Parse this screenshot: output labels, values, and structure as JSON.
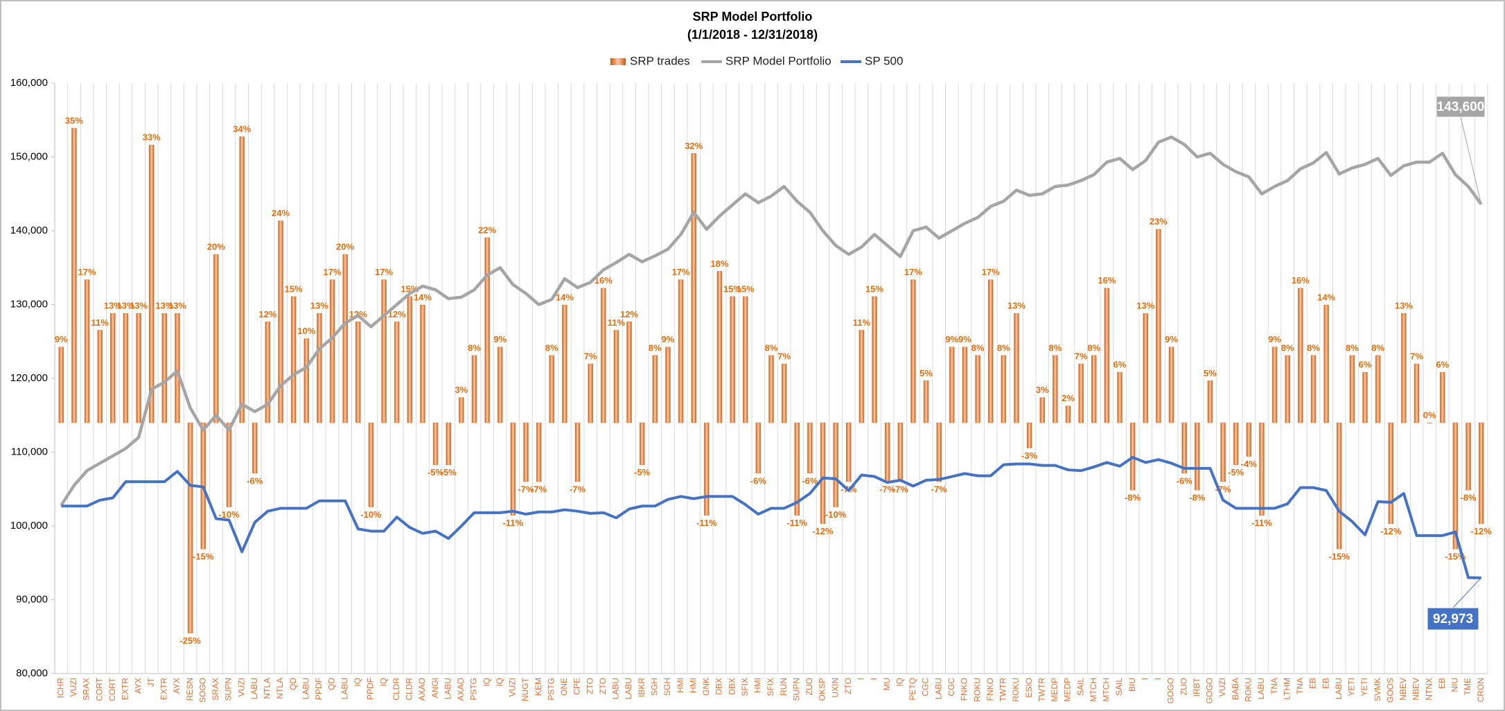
{
  "chart_data": {
    "type": "combo",
    "title": "SRP Model Portfolio",
    "subtitle": "(1/1/2018 - 12/31/2018)",
    "categories": [
      "ICHR",
      "VUZI",
      "SRAX",
      "CORT",
      "CORT",
      "EXTR",
      "AYX",
      "JT",
      "EXTR",
      "AYX",
      "RESN",
      "SOGO",
      "SRAX",
      "SUPN",
      "VUZI",
      "LABU",
      "NTLA",
      "NTLA",
      "QD",
      "LABU",
      "PPDF",
      "QD",
      "LABU",
      "IQ",
      "PPDF",
      "IQ",
      "CLDR",
      "CLDR",
      "AXAO",
      "ANGI",
      "LABU",
      "AXAO",
      "PSTG",
      "IQ",
      "IQ",
      "VUZI",
      "NUGT",
      "KEM",
      "PSTG",
      "ONE",
      "CPE",
      "ZTO",
      "ZTO",
      "LABU",
      "LABU",
      "IBKR",
      "SGH",
      "SGH",
      "HMI",
      "HMI",
      "GNK",
      "DBX",
      "DBX",
      "SFIX",
      "HMI",
      "SFIX",
      "RUN",
      "SUPN",
      "ZUO",
      "OKSP",
      "UXIN",
      "ZTO",
      "I",
      "I",
      "MU",
      "IQ",
      "PETQ",
      "CGC",
      "LABU",
      "CGC",
      "FNKO",
      "ROKU",
      "FNKO",
      "TWTR",
      "ROKU",
      "ESIO",
      "TWTR",
      "MEDP",
      "MEDP",
      "SAIL",
      "MTCH",
      "MTCH",
      "SAIL",
      "BIU",
      "I",
      "I",
      "GOGO",
      "ZUO",
      "IRBT",
      "GOGO",
      "VUZI",
      "BABA",
      "ROKU",
      "LABU",
      "TNA",
      "LTHM",
      "TNA",
      "EB",
      "EB",
      "LABU",
      "YETI",
      "YETI",
      "SVMK",
      "GOOS",
      "NBEV",
      "NBEV",
      "NTNX",
      "EB",
      "NIU",
      "TME",
      "CRON"
    ],
    "series": [
      {
        "name": "SRP trades",
        "type": "bar",
        "axis": "y2",
        "color": "#ed7d31",
        "values": [
          9,
          35,
          17,
          11,
          13,
          13,
          13,
          33,
          13,
          13,
          -25,
          -15,
          20,
          -10,
          34,
          -6,
          12,
          24,
          15,
          10,
          13,
          17,
          20,
          12,
          -10,
          17,
          12,
          15,
          14,
          -5,
          -5,
          3,
          8,
          22,
          9,
          -11,
          -7,
          -7,
          8,
          14,
          -7,
          7,
          16,
          11,
          12,
          -5,
          8,
          9,
          17,
          32,
          -11,
          18,
          15,
          15,
          -6,
          8,
          7,
          -11,
          -6,
          -12,
          -10,
          -7,
          11,
          15,
          -7,
          -7,
          17,
          5,
          -7,
          9,
          9,
          8,
          17,
          8,
          13,
          -3,
          3,
          8,
          2,
          7,
          8,
          16,
          6,
          -8,
          13,
          23,
          9,
          -6,
          -8,
          5,
          -7,
          -5,
          -4,
          -11,
          9,
          8,
          16,
          8,
          14,
          -15,
          8,
          6,
          8,
          -12,
          13,
          7,
          0,
          6,
          -15,
          -8,
          -12
        ],
        "value_labels": [
          "9%",
          "35%",
          "17%",
          "11%",
          "13%",
          "13%",
          "13%",
          "33%",
          "13%",
          "13%",
          "-25%",
          "-15%",
          "20%",
          "-10%",
          "34%",
          "-6%",
          "12%",
          "24%",
          "15%",
          "10%",
          "13%",
          "17%",
          "20%",
          "12%",
          "-10%",
          "17%",
          "12%",
          "15%",
          "14%",
          "-5%",
          "-5%",
          "3%",
          "8%",
          "22%",
          "9%",
          "-11%",
          "-7%",
          "-7%",
          "8%",
          "14%",
          "-7%",
          "7%",
          "16%",
          "11%",
          "12%",
          "-5%",
          "8%",
          "9%",
          "17%",
          "32%",
          "-11%",
          "18%",
          "15%",
          "15%",
          "-6%",
          "8%",
          "7%",
          "-11%",
          "-6%",
          "-12%",
          "-10%",
          "-7%",
          "11%",
          "15%",
          "-7%",
          "-7%",
          "17%",
          "5%",
          "-7%",
          "9%",
          "9%",
          "8%",
          "17%",
          "8%",
          "13%",
          "-3%",
          "3%",
          "8%",
          "2%",
          "7%",
          "8%",
          "16%",
          "6%",
          "-8%",
          "13%",
          "23%",
          "9%",
          "-6%",
          "-8%",
          "5%",
          "-7%",
          "-5%",
          "-4%",
          "-11%",
          "9%",
          "8%",
          "16%",
          "8%",
          "14%",
          "-15%",
          "8%",
          "6%",
          "8%",
          "-12%",
          "13%",
          "7%",
          "0%",
          "6%",
          "-15%",
          "-8%",
          "-12%"
        ]
      },
      {
        "name": "SRP Model Portfolio",
        "type": "line",
        "color": "#a5a5a5",
        "values": [
          102800,
          105500,
          107500,
          108500,
          109500,
          110500,
          112000,
          118500,
          119500,
          121000,
          116000,
          113000,
          115000,
          113000,
          116500,
          115500,
          116500,
          119000,
          120500,
          121500,
          124000,
          125500,
          127500,
          128500,
          127000,
          128500,
          130000,
          131500,
          132500,
          132000,
          130800,
          131000,
          132000,
          134000,
          135000,
          132700,
          131500,
          130000,
          130700,
          133500,
          132300,
          133000,
          134700,
          135700,
          136800,
          135800,
          136600,
          137500,
          139500,
          142500,
          140200,
          142000,
          143500,
          145000,
          143800,
          144700,
          146000,
          144000,
          142500,
          140000,
          138000,
          136800,
          137800,
          139500,
          138000,
          136500,
          140000,
          140500,
          139000,
          140000,
          141000,
          141800,
          143300,
          144000,
          145500,
          144800,
          145000,
          146000,
          146200,
          146800,
          147600,
          149300,
          149800,
          148300,
          149500,
          152000,
          152700,
          151700,
          150000,
          150500,
          149000,
          148000,
          147300,
          145000,
          146000,
          146800,
          148400,
          149200,
          150600,
          147700,
          148500,
          149000,
          149800,
          147500,
          148800,
          149300,
          149300,
          150500,
          147600,
          146000,
          143600
        ]
      },
      {
        "name": "SP 500",
        "type": "line",
        "color": "#4472c4",
        "values": [
          102700,
          102700,
          102700,
          103500,
          103800,
          106000,
          106000,
          106000,
          106000,
          107400,
          105500,
          105300,
          101000,
          100800,
          96500,
          100500,
          102000,
          102400,
          102400,
          102400,
          103400,
          103400,
          103400,
          99600,
          99300,
          99300,
          101200,
          99800,
          99000,
          99300,
          98300,
          100000,
          101800,
          101800,
          101800,
          102000,
          101600,
          101900,
          101900,
          102200,
          102000,
          101700,
          101800,
          101100,
          102300,
          102700,
          102700,
          103600,
          104000,
          103700,
          104000,
          104000,
          104000,
          102900,
          101600,
          102400,
          102400,
          103200,
          104400,
          106500,
          106400,
          104800,
          106900,
          106700,
          105900,
          106200,
          105400,
          106200,
          106300,
          106700,
          107100,
          106800,
          106800,
          108300,
          108400,
          108400,
          108200,
          108200,
          107600,
          107500,
          108000,
          108600,
          108100,
          109300,
          108600,
          109000,
          108500,
          107800,
          107800,
          107800,
          103500,
          102400,
          102400,
          102400,
          102400,
          103000,
          105200,
          105200,
          104800,
          102000,
          100600,
          98800,
          103300,
          103200,
          104400,
          98700,
          98700,
          98700,
          99200,
          93000,
          92973
        ]
      }
    ],
    "ylim": [
      80000,
      160000
    ],
    "yticks": [
      {
        "value": 80000,
        "label": "80,000"
      },
      {
        "value": 90000,
        "label": "90,000"
      },
      {
        "value": 100000,
        "label": "100,000"
      },
      {
        "value": 110000,
        "label": "110,000"
      },
      {
        "value": 120000,
        "label": "120,000"
      },
      {
        "value": 130000,
        "label": "130,000"
      },
      {
        "value": 140000,
        "label": "140,000"
      },
      {
        "value": 150000,
        "label": "150,000"
      },
      {
        "value": 160000,
        "label": "160,000"
      }
    ],
    "y2lim": [
      -29.8,
      40.35
    ],
    "grid": true,
    "legend": "top",
    "annotations": [
      {
        "text": "143,600",
        "color": "#a5a5a5"
      },
      {
        "text": "92,973",
        "color": "#4472c4"
      }
    ]
  }
}
